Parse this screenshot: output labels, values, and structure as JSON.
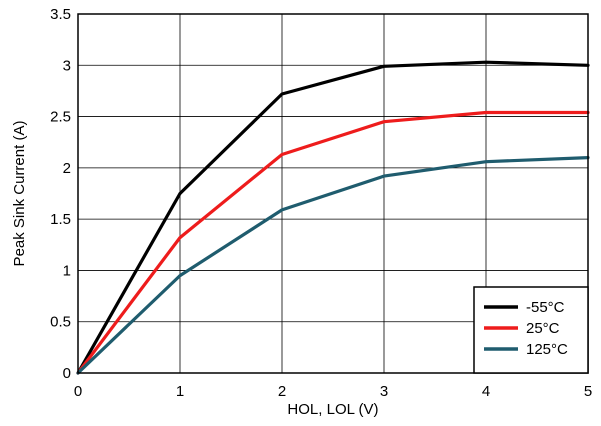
{
  "chart_data": {
    "type": "line",
    "xlabel": "HOL, LOL (V)",
    "ylabel": "Peak Sink Current (A)",
    "xlim": [
      0,
      5
    ],
    "ylim": [
      0,
      3.5
    ],
    "x_ticks": [
      0,
      1,
      2,
      3,
      4,
      5
    ],
    "y_ticks": [
      0,
      0.5,
      1,
      1.5,
      2,
      2.5,
      3,
      3.5
    ],
    "x_tick_labels": [
      "0",
      "1",
      "2",
      "3",
      "4",
      "5"
    ],
    "y_tick_labels": [
      "0",
      "0.5",
      "1",
      "1.5",
      "2",
      "2.5",
      "3",
      "3.5"
    ],
    "grid": true,
    "legend_position": "bottom-right",
    "series": [
      {
        "name": "-55°C",
        "color": "#000000",
        "x": [
          0,
          1,
          2,
          3,
          4,
          5
        ],
        "y": [
          0,
          1.75,
          2.72,
          2.99,
          3.03,
          3.0
        ]
      },
      {
        "name": "25°C",
        "color": "#ee1c1c",
        "x": [
          0,
          1,
          2,
          3,
          4,
          5
        ],
        "y": [
          0,
          1.32,
          2.13,
          2.45,
          2.54,
          2.54
        ]
      },
      {
        "name": "125°C",
        "color": "#1f5c6e",
        "x": [
          0,
          1,
          2,
          3,
          4,
          5
        ],
        "y": [
          0,
          0.95,
          1.59,
          1.92,
          2.06,
          2.1
        ]
      }
    ]
  }
}
